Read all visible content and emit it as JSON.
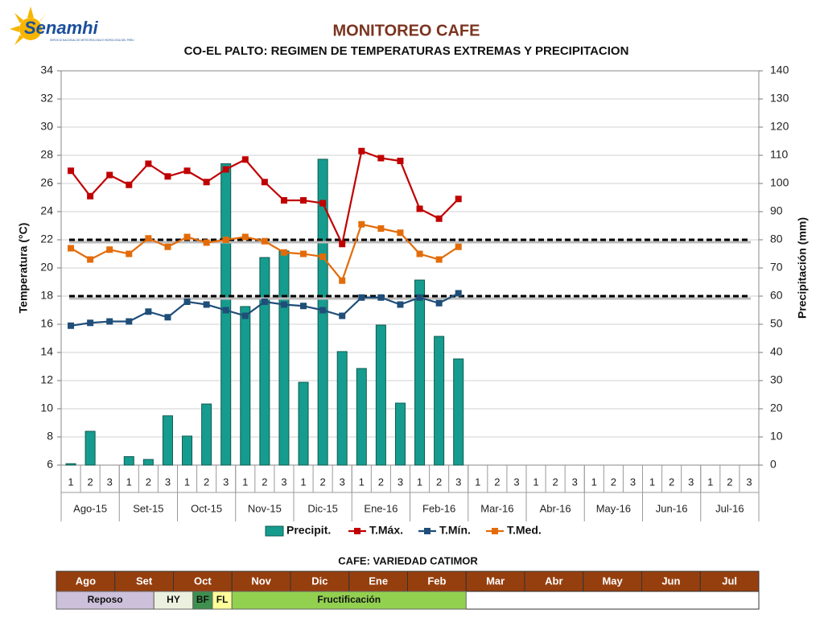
{
  "header": {
    "logo": "Senamhi",
    "logo_subtitle": "SERVICIO NACIONAL DE METEOROLOGIA E HIDROLOGIA DEL PERU"
  },
  "chart_data": {
    "type": "combo",
    "title": "MONITOREO CAFE",
    "subtitle": "CO-EL PALTO: REGIMEN DE TEMPERATURAS EXTREMAS Y PRECIPITACION",
    "ylabel": "Temperatura (°C)",
    "y2label": "Precipitación (mm)",
    "categories": [
      "1",
      "2",
      "3",
      "1",
      "2",
      "3",
      "1",
      "2",
      "3",
      "1",
      "2",
      "3",
      "1",
      "2",
      "3",
      "1",
      "2",
      "3",
      "1",
      "2",
      "3",
      "1",
      "2",
      "3",
      "1",
      "2",
      "3",
      "1",
      "2",
      "3",
      "1",
      "2",
      "3",
      "1",
      "2",
      "3"
    ],
    "groups": [
      "Ago-15",
      "Set-15",
      "Oct-15",
      "Nov-15",
      "Dic-15",
      "Ene-16",
      "Feb-16",
      "Mar-16",
      "Abr-16",
      "May-16",
      "Jun-16",
      "Jul-16"
    ],
    "series": [
      {
        "name": "Precipit.",
        "type": "bar",
        "axis": "y2",
        "color": "#169c8e",
        "values": [
          0.5,
          12,
          0,
          3,
          2,
          17.5,
          10.3,
          21.7,
          107,
          56.3,
          73.7,
          76,
          29.4,
          108.6,
          40.3,
          34.3,
          49.7,
          22,
          65.7,
          45.7,
          37.7,
          null,
          null,
          null,
          null,
          null,
          null,
          null,
          null,
          null,
          null,
          null,
          null,
          null,
          null,
          null
        ]
      },
      {
        "name": "T.Máx.",
        "type": "line",
        "color": "#c00000",
        "values": [
          26.9,
          25.1,
          26.6,
          25.9,
          27.4,
          26.5,
          26.9,
          26.1,
          27.0,
          27.7,
          26.1,
          24.8,
          24.8,
          24.6,
          21.7,
          28.3,
          27.8,
          27.6,
          24.2,
          23.5,
          24.9,
          null,
          null,
          null,
          null,
          null,
          null,
          null,
          null,
          null,
          null,
          null,
          null,
          null,
          null,
          null
        ]
      },
      {
        "name": "T.Mín.",
        "type": "line",
        "color": "#1f4e79",
        "values": [
          15.9,
          16.1,
          16.2,
          16.2,
          16.9,
          16.5,
          17.6,
          17.4,
          17.0,
          16.6,
          17.6,
          17.4,
          17.3,
          17.0,
          16.6,
          17.9,
          17.9,
          17.4,
          17.9,
          17.5,
          18.2,
          null,
          null,
          null,
          null,
          null,
          null,
          null,
          null,
          null,
          null,
          null,
          null,
          null,
          null,
          null
        ]
      },
      {
        "name": "T.Med.",
        "type": "line",
        "color": "#e36c09",
        "values": [
          21.4,
          20.6,
          21.3,
          21.0,
          22.1,
          21.5,
          22.2,
          21.8,
          22.0,
          22.2,
          21.9,
          21.1,
          21.0,
          20.8,
          19.1,
          23.1,
          22.8,
          22.5,
          21.0,
          20.6,
          21.5,
          null,
          null,
          null,
          null,
          null,
          null,
          null,
          null,
          null,
          null,
          null,
          null,
          null,
          null,
          null
        ]
      }
    ],
    "thresholds": [
      22,
      18
    ],
    "ylim": [
      6,
      34
    ],
    "yticks": [
      6,
      8,
      10,
      12,
      14,
      16,
      18,
      20,
      22,
      24,
      26,
      28,
      30,
      32,
      34
    ],
    "y2lim": [
      0,
      140
    ],
    "y2ticks": [
      0,
      10,
      20,
      30,
      40,
      50,
      60,
      70,
      80,
      90,
      100,
      110,
      120,
      130,
      140
    ],
    "grid": true,
    "legend": "bottom"
  },
  "calendar": {
    "title": "CAFE: VARIEDAD CATIMOR",
    "header_color": "#963f0e",
    "months": [
      "Ago",
      "Set",
      "Oct",
      "Nov",
      "Dic",
      "Ene",
      "Feb",
      "Mar",
      "Abr",
      "May",
      "Jun",
      "Jul"
    ],
    "phases": [
      {
        "name": "Reposo",
        "color": "#ccc0da"
      },
      {
        "name": "HY",
        "color": "#ebf1de"
      },
      {
        "name": "BF",
        "color": "#3f8f4f"
      },
      {
        "name": "FL",
        "color": "#ffff99"
      },
      {
        "name": "Fructificación",
        "color": "#92d050"
      }
    ]
  }
}
